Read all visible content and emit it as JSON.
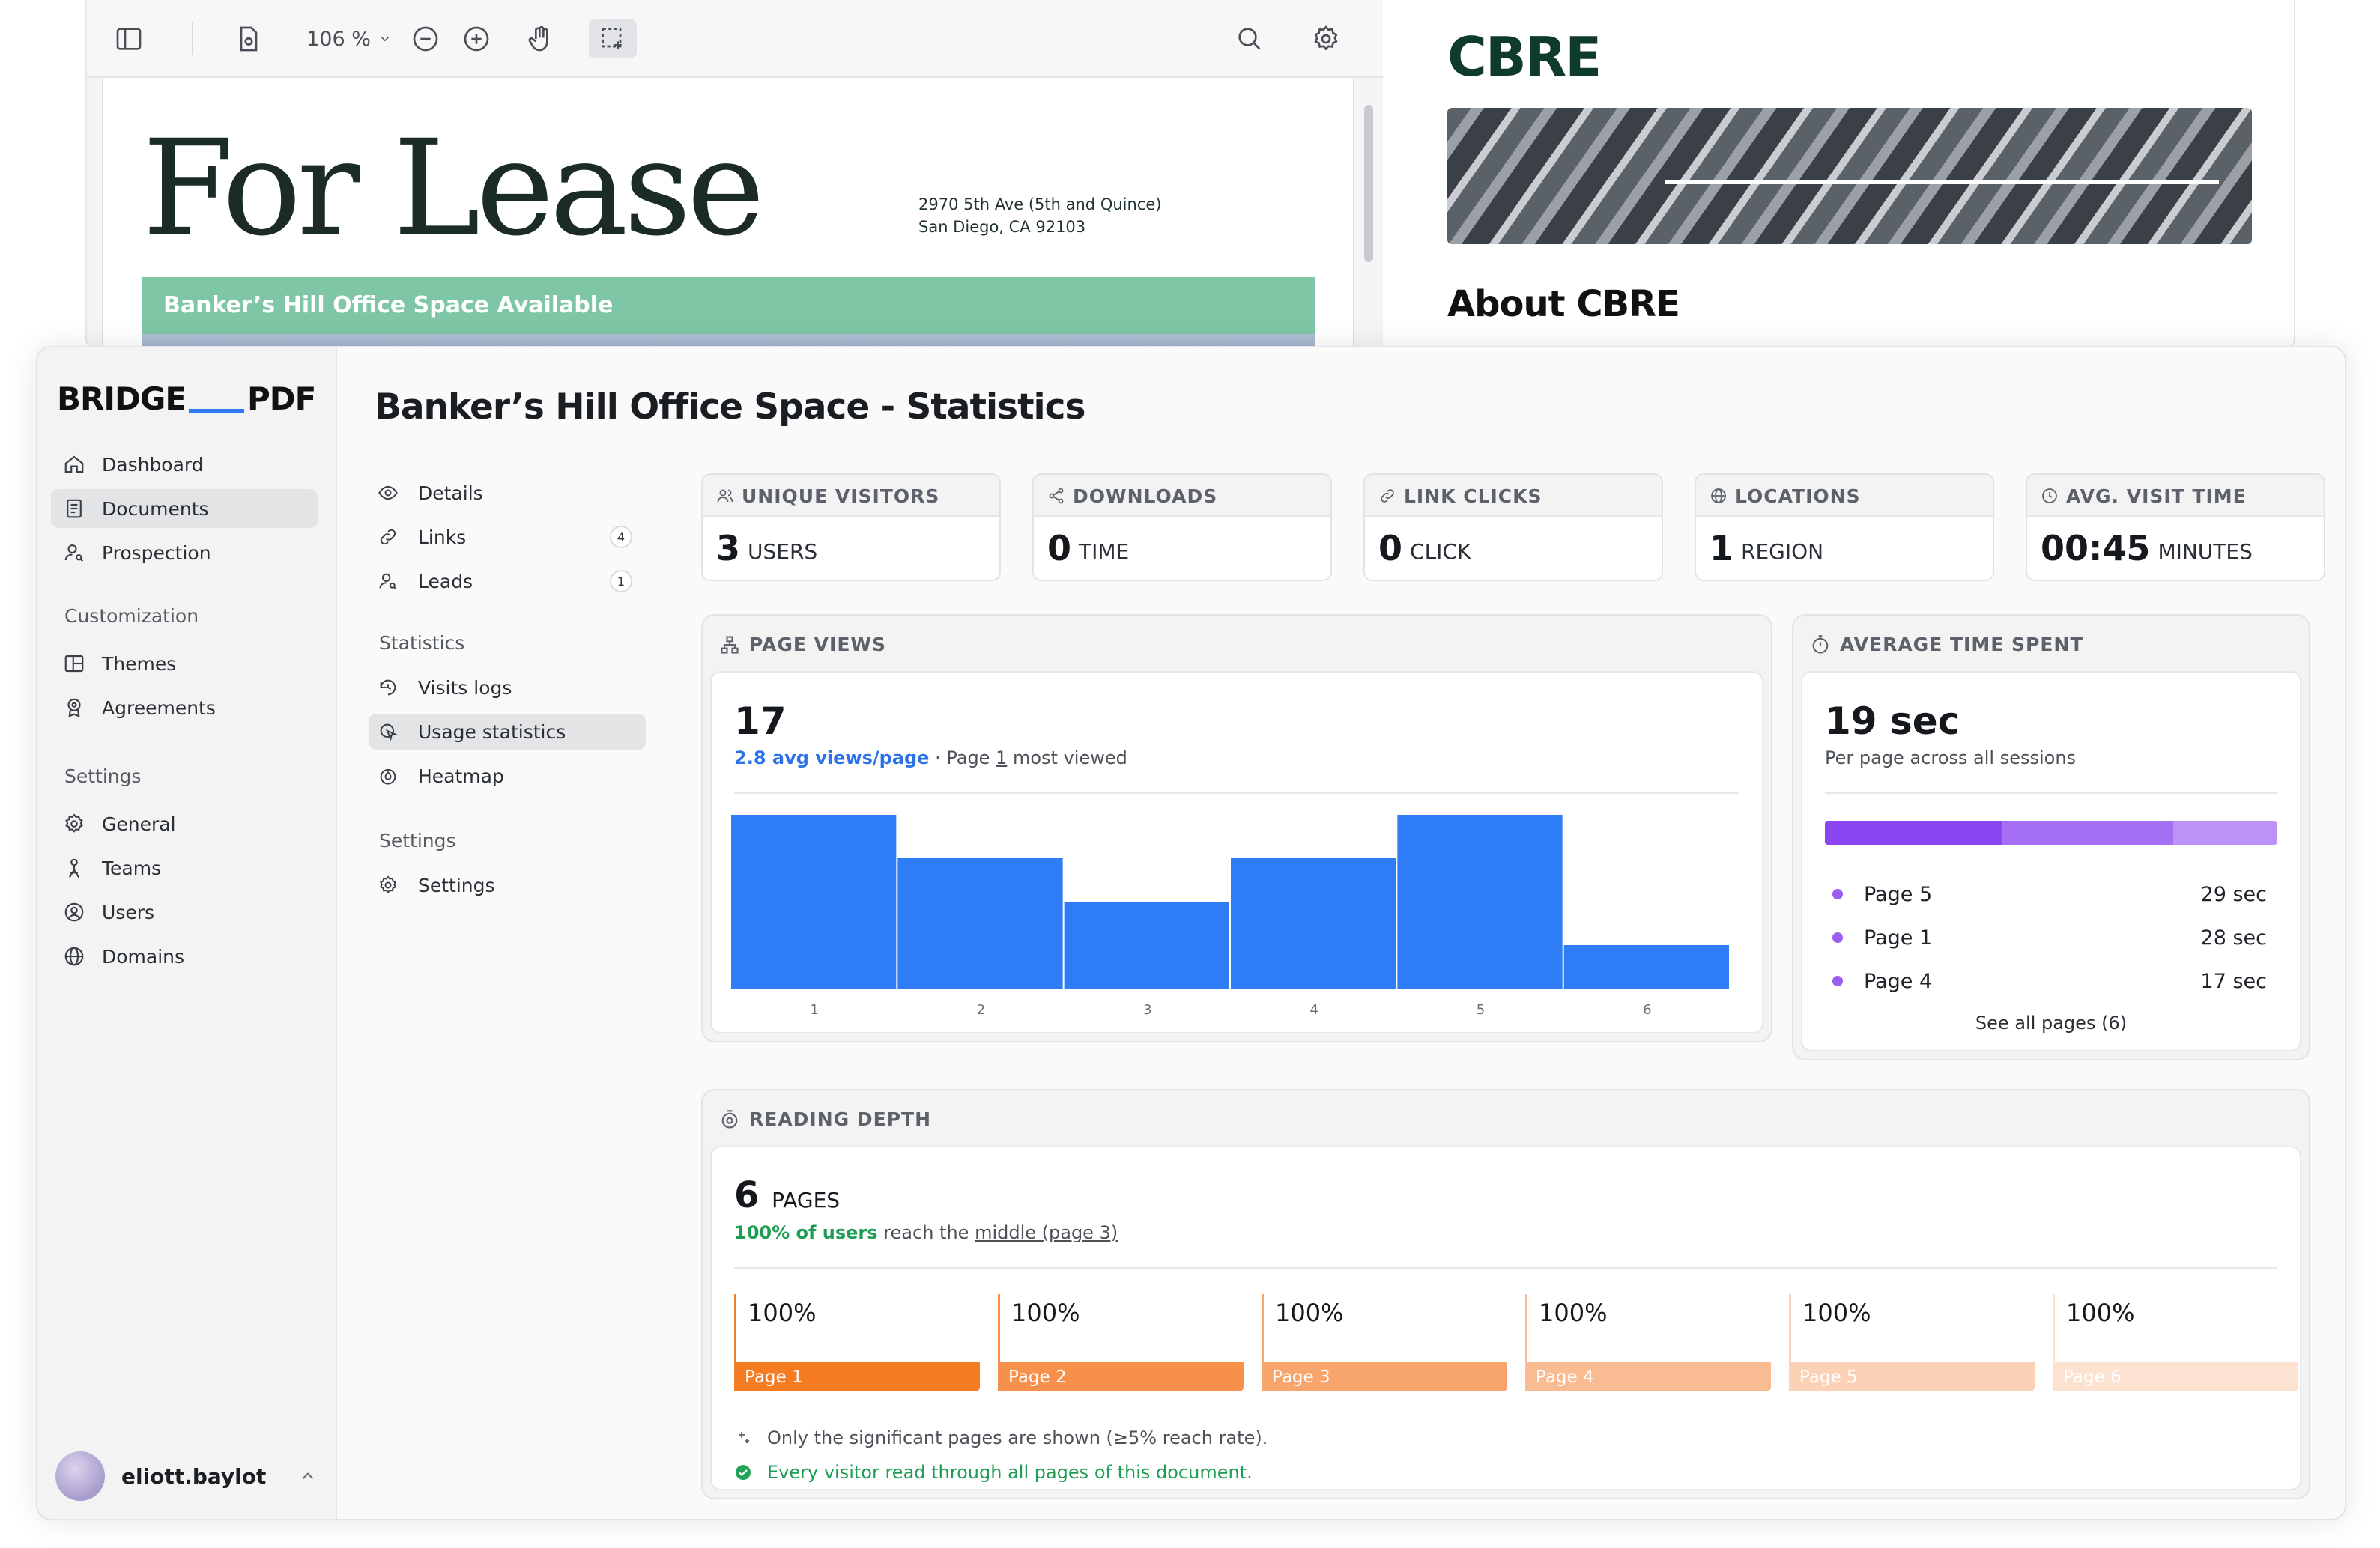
{
  "viewer": {
    "zoom": "106 %",
    "lease_title": "For Lease",
    "address_line1": "2970 5th Ave (5th and Quince)",
    "address_line2": "San Diego, CA 92103",
    "band_text": "Banker’s Hill Office Space Available",
    "brand_logo": "CBRE",
    "about_heading": "About CBRE"
  },
  "sidebar": {
    "brand_left": "BRIDGE",
    "brand_right": "PDF",
    "items": [
      {
        "label": "Dashboard",
        "icon": "home-icon"
      },
      {
        "label": "Documents",
        "icon": "document-icon"
      },
      {
        "label": "Prospection",
        "icon": "user-search-icon"
      }
    ],
    "customization_label": "Customization",
    "customization_items": [
      {
        "label": "Themes",
        "icon": "layout-icon"
      },
      {
        "label": "Agreements",
        "icon": "seal-icon"
      }
    ],
    "settings_label": "Settings",
    "settings_items": [
      {
        "label": "General",
        "icon": "gear-icon"
      },
      {
        "label": "Teams",
        "icon": "team-icon"
      },
      {
        "label": "Users",
        "icon": "user-circle-icon"
      },
      {
        "label": "Domains",
        "icon": "globe-icon"
      }
    ],
    "user_name": "eliott.baylot"
  },
  "main": {
    "title": "Banker’s Hill Office Space - Statistics",
    "subnav": {
      "details": "Details",
      "links": "Links",
      "links_count": "4",
      "leads": "Leads",
      "leads_count": "1",
      "statistics_label": "Statistics",
      "visits_logs": "Visits logs",
      "usage_statistics": "Usage statistics",
      "heatmap": "Heatmap",
      "settings_label": "Settings",
      "settings": "Settings"
    }
  },
  "stats": [
    {
      "label": "UNIQUE VISITORS",
      "value": "3",
      "unit": "USERS",
      "icon": "users-icon"
    },
    {
      "label": "DOWNLOADS",
      "value": "0",
      "unit": "TIME",
      "icon": "share-icon"
    },
    {
      "label": "LINK CLICKS",
      "value": "0",
      "unit": "CLICK",
      "icon": "link-icon"
    },
    {
      "label": "LOCATIONS",
      "value": "1",
      "unit": "REGION",
      "icon": "globe-icon"
    },
    {
      "label": "AVG. VISIT TIME",
      "value": "00:45",
      "unit": "MINUTES",
      "icon": "clock-icon"
    }
  ],
  "page_views": {
    "heading": "PAGE VIEWS",
    "total": "17",
    "avg": "2.8 avg views/page",
    "sep": " · Page ",
    "top_page": "1",
    "suffix": " most viewed"
  },
  "chart_data": {
    "type": "bar",
    "categories": [
      "1",
      "2",
      "3",
      "4",
      "5",
      "6"
    ],
    "values": [
      4,
      3,
      2,
      3,
      4,
      1
    ],
    "ylim": [
      0,
      4
    ],
    "grid": false,
    "color": "#2f7df6"
  },
  "avg_time": {
    "heading": "AVERAGE TIME SPENT",
    "value": "19 sec",
    "subtitle": "Per page across all sessions",
    "segments": [
      {
        "fraction": 0.39,
        "color": "#8b45f2"
      },
      {
        "fraction": 0.38,
        "color": "#a56ff5"
      },
      {
        "fraction": 0.23,
        "color": "#bc94f7"
      }
    ],
    "rows": [
      {
        "page": "Page 5",
        "time": "29 sec"
      },
      {
        "page": "Page 1",
        "time": "28 sec"
      },
      {
        "page": "Page 4",
        "time": "17 sec"
      }
    ],
    "see_all": "See all pages (6)"
  },
  "reading_depth": {
    "heading": "READING DEPTH",
    "pages": "6",
    "pages_unit": "PAGES",
    "reach_strong": "100% of users",
    "reach_mid": " reach the ",
    "reach_link": "middle (page 3)",
    "boxes": [
      {
        "pct": "100%",
        "page": "Page 1",
        "color": "#f57c22"
      },
      {
        "pct": "100%",
        "page": "Page 2",
        "color": "#f6904a"
      },
      {
        "pct": "100%",
        "page": "Page 3",
        "color": "#f8a56d"
      },
      {
        "pct": "100%",
        "page": "Page 4",
        "color": "#f9bb91"
      },
      {
        "pct": "100%",
        "page": "Page 5",
        "color": "#fbd2b6"
      },
      {
        "pct": "100%",
        "page": "Page 6",
        "color": "#fce3d1"
      }
    ],
    "note1": "Only the significant pages are shown (≥5% reach rate).",
    "note2": "Every visitor read through all pages of this document."
  }
}
